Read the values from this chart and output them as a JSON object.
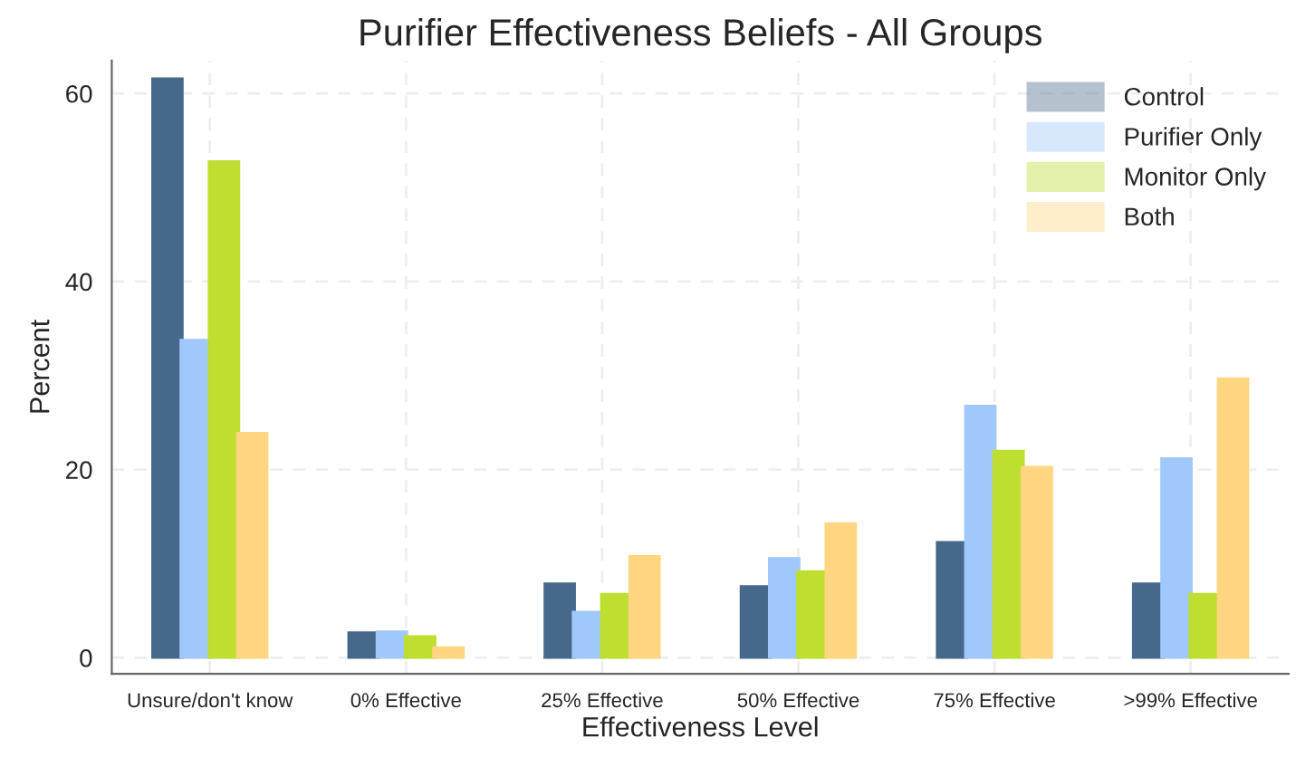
{
  "chart_data": {
    "type": "bar",
    "title": "Purifier Effectiveness Beliefs - All Groups",
    "xlabel": "Effectiveness Level",
    "ylabel": "Percent",
    "categories": [
      "Unsure/don't know",
      "0% Effective",
      "25% Effective",
      "50% Effective",
      "75% Effective",
      ">99% Effective"
    ],
    "series": [
      {
        "name": "Control",
        "color": "#46698b",
        "values": [
          61.6,
          2.7,
          7.9,
          7.6,
          12.3,
          7.9
        ]
      },
      {
        "name": "Purifier Only",
        "color": "#a0c8fa",
        "values": [
          33.8,
          2.8,
          4.9,
          10.6,
          26.8,
          21.2
        ]
      },
      {
        "name": "Monitor Only",
        "color": "#bede30",
        "values": [
          52.8,
          2.3,
          6.8,
          9.2,
          22.0,
          6.8
        ]
      },
      {
        "name": "Both",
        "color": "#fed580",
        "values": [
          23.9,
          1.1,
          10.8,
          14.3,
          20.3,
          29.7
        ]
      }
    ],
    "ylim": [
      -1.7,
      63.5
    ],
    "yticks": [
      0,
      20,
      40,
      60
    ],
    "grid": true,
    "legend": "top right"
  }
}
